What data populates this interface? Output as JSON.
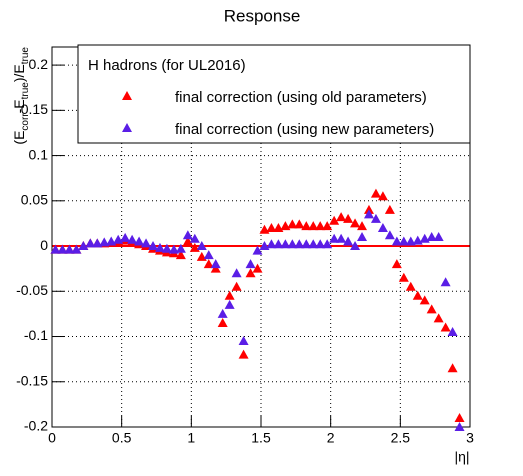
{
  "chart_data": {
    "type": "scatter",
    "title": "Response",
    "xlabel": "|η|",
    "ylabel_parts": [
      "(E",
      "corr",
      "-E",
      "true",
      ")/E",
      "true"
    ],
    "legend_title": "H hadrons (for UL2016)",
    "xlim": [
      0,
      3
    ],
    "ylim": [
      -0.2,
      0.22
    ],
    "xticks": [
      0,
      0.5,
      1,
      1.5,
      2,
      2.5,
      3
    ],
    "yticks": [
      -0.2,
      -0.15,
      -0.1,
      -0.05,
      0,
      0.05,
      0.1,
      0.15,
      0.2
    ],
    "grid": true,
    "reference_line": {
      "y": 0,
      "color": "#ff0000"
    },
    "x": [
      0.025,
      0.075,
      0.125,
      0.175,
      0.225,
      0.275,
      0.325,
      0.375,
      0.425,
      0.475,
      0.525,
      0.575,
      0.625,
      0.675,
      0.725,
      0.775,
      0.825,
      0.875,
      0.925,
      0.975,
      1.025,
      1.075,
      1.125,
      1.175,
      1.225,
      1.275,
      1.325,
      1.375,
      1.425,
      1.475,
      1.525,
      1.575,
      1.625,
      1.675,
      1.725,
      1.775,
      1.825,
      1.875,
      1.925,
      1.975,
      2.025,
      2.075,
      2.125,
      2.175,
      2.225,
      2.275,
      2.325,
      2.375,
      2.425,
      2.475,
      2.525,
      2.575,
      2.625,
      2.675,
      2.725,
      2.775,
      2.825,
      2.875,
      2.925
    ],
    "series": [
      {
        "name": "final correction (using old parameters)",
        "color": "#ff0000",
        "values": [
          -0.004,
          -0.004,
          -0.004,
          -0.004,
          0,
          0.003,
          0.003,
          0.003,
          0.004,
          0.005,
          0.006,
          0.004,
          0.002,
          0,
          -0.003,
          -0.005,
          -0.007,
          -0.008,
          -0.01,
          0.005,
          -0.002,
          -0.012,
          -0.02,
          -0.025,
          -0.085,
          -0.055,
          -0.045,
          -0.12,
          -0.03,
          -0.025,
          0.018,
          0.02,
          0.02,
          0.022,
          0.024,
          0.024,
          0.022,
          0.022,
          0.022,
          0.022,
          0.028,
          0.032,
          0.03,
          0.025,
          0.022,
          0.04,
          0.058,
          0.055,
          0.04,
          -0.02,
          -0.035,
          -0.045,
          -0.055,
          -0.06,
          -0.07,
          -0.08,
          -0.09,
          -0.135,
          -0.19
        ]
      },
      {
        "name": "final correction (using new parameters)",
        "color": "#5a1ee6",
        "values": [
          -0.004,
          -0.004,
          -0.004,
          -0.004,
          0,
          0.003,
          0.003,
          0.004,
          0.005,
          0.007,
          0.009,
          0.007,
          0.005,
          0.003,
          0,
          -0.002,
          -0.003,
          -0.004,
          -0.003,
          0.012,
          0.008,
          0,
          -0.01,
          -0.02,
          -0.075,
          -0.065,
          -0.03,
          -0.105,
          -0.02,
          -0.005,
          0,
          0.002,
          0.002,
          0.002,
          0.002,
          0.002,
          0.002,
          0.002,
          0.002,
          0.002,
          0.008,
          0.008,
          0.005,
          0,
          0.01,
          0.035,
          0.03,
          0.02,
          0.012,
          0.005,
          0.005,
          0.005,
          0.006,
          0.008,
          0.01,
          0.01,
          -0.04,
          -0.095,
          -0.2
        ]
      }
    ]
  }
}
